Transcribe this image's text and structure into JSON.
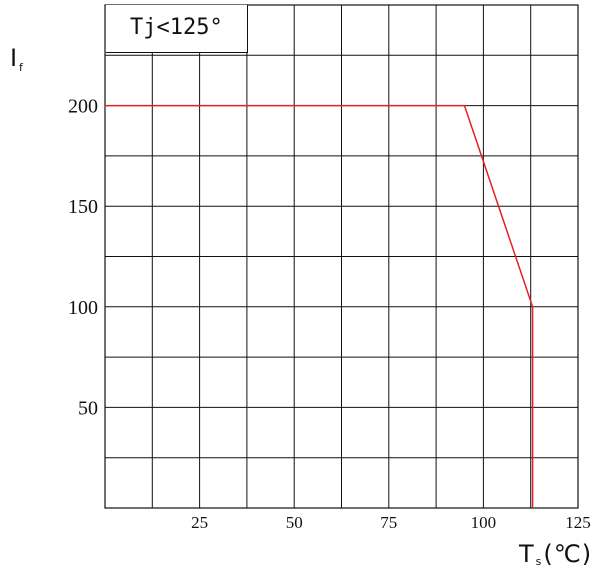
{
  "chart_data": {
    "type": "line",
    "xlabel": "T",
    "xlabel_sub": "s",
    "xlabel_unit": "(℃)",
    "ylabel": "I",
    "ylabel_sub": "f",
    "annotation": "Tj<125°",
    "x_ticks": [
      "25",
      "50",
      "75",
      "100",
      "125"
    ],
    "y_ticks": [
      "50",
      "100",
      "150",
      "200"
    ],
    "xlim": [
      0,
      125
    ],
    "ylim": [
      0,
      250
    ],
    "grid": true,
    "series": [
      {
        "color": "#e4212b",
        "x": [
          0,
          95,
          113,
          113
        ],
        "y": [
          200,
          200,
          100,
          0
        ]
      }
    ]
  }
}
